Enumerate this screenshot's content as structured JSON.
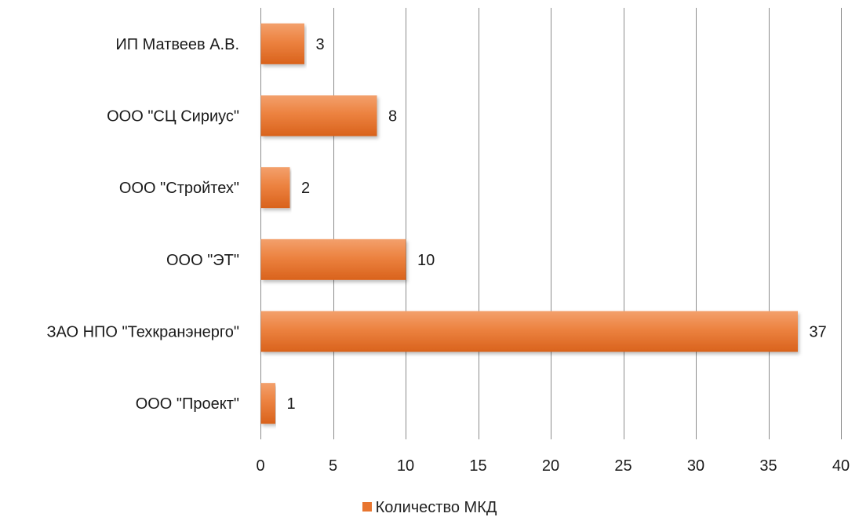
{
  "chart_data": {
    "type": "bar",
    "orientation": "horizontal",
    "categories": [
      "ИП Матвеев А.В.",
      "ООО \"СЦ Сириус\"",
      "ООО \"Стройтех\"",
      "ООО \"ЭТ\"",
      "ЗАО НПО \"Техкранэнерго\"",
      "ООО \"Проект\""
    ],
    "series": [
      {
        "name": "Количество МКД",
        "values": [
          3,
          8,
          2,
          10,
          37,
          1
        ],
        "color": "#e8752f"
      }
    ],
    "xlim": [
      0,
      40
    ],
    "xticks": [
      0,
      5,
      10,
      15,
      20,
      25,
      30,
      35,
      40
    ],
    "grid": "vertical",
    "legend_position": "bottom",
    "data_labels": true
  }
}
